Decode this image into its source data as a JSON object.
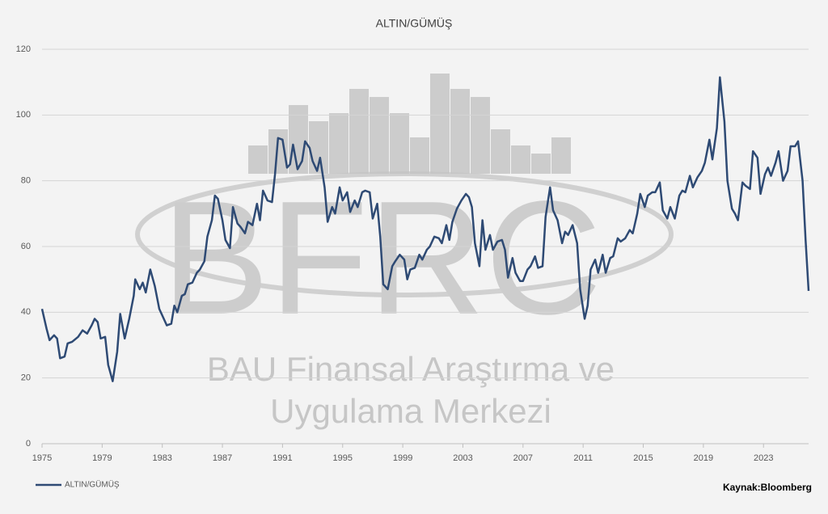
{
  "chart_data": {
    "type": "line",
    "title": "ALTIN/GÜMÜŞ",
    "source": "Kaynak:Bloomberg",
    "watermark": {
      "logo": "BFRC",
      "line1": "BAU Finansal Araştırma ve",
      "line2": "Uygulama Merkezi"
    },
    "xlim": [
      1975,
      2026
    ],
    "xticks": [
      1975,
      1979,
      1983,
      1987,
      1991,
      1995,
      1999,
      2003,
      2007,
      2011,
      2015,
      2019,
      2023
    ],
    "ylim": [
      0,
      120
    ],
    "yticks": [
      0,
      20,
      40,
      60,
      80,
      100,
      120
    ],
    "grid": true,
    "legend": "bottom-left",
    "x": [
      1975.0,
      1975.3,
      1975.5,
      1975.8,
      1976.0,
      1976.2,
      1976.5,
      1976.7,
      1977.0,
      1977.4,
      1977.7,
      1978.0,
      1978.3,
      1978.5,
      1978.7,
      1978.9,
      1979.2,
      1979.4,
      1979.7,
      1980.0,
      1980.2,
      1980.5,
      1980.8,
      1981.1,
      1981.2,
      1981.5,
      1981.7,
      1981.9,
      1982.2,
      1982.5,
      1982.8,
      1983.0,
      1983.3,
      1983.6,
      1983.8,
      1984.0,
      1984.3,
      1984.5,
      1984.7,
      1985.0,
      1985.3,
      1985.5,
      1985.8,
      1986.0,
      1986.3,
      1986.5,
      1986.7,
      1987.0,
      1987.2,
      1987.5,
      1987.7,
      1988.0,
      1988.2,
      1988.5,
      1988.7,
      1989.0,
      1989.3,
      1989.5,
      1989.7,
      1990.0,
      1990.3,
      1990.5,
      1990.7,
      1991.0,
      1991.3,
      1991.5,
      1991.7,
      1992.0,
      1992.3,
      1992.5,
      1992.8,
      1993.0,
      1993.3,
      1993.5,
      1993.8,
      1994.0,
      1994.3,
      1994.5,
      1994.8,
      1995.0,
      1995.3,
      1995.5,
      1995.8,
      1996.0,
      1996.3,
      1996.5,
      1996.8,
      1997.0,
      1997.3,
      1997.5,
      1997.7,
      1998.0,
      1998.3,
      1998.5,
      1998.8,
      1999.1,
      1999.3,
      1999.5,
      1999.8,
      2000.1,
      2000.3,
      2000.6,
      2000.8,
      2001.1,
      2001.4,
      2001.6,
      2001.9,
      2002.1,
      2002.3,
      2002.6,
      2002.9,
      2003.2,
      2003.4,
      2003.6,
      2003.8,
      2004.1,
      2004.3,
      2004.5,
      2004.8,
      2005.0,
      2005.3,
      2005.6,
      2005.8,
      2006.0,
      2006.3,
      2006.5,
      2006.8,
      2007.0,
      2007.3,
      2007.5,
      2007.8,
      2008.0,
      2008.3,
      2008.5,
      2008.8,
      2009.0,
      2009.3,
      2009.6,
      2009.8,
      2010.0,
      2010.3,
      2010.6,
      2010.8,
      2011.1,
      2011.3,
      2011.5,
      2011.8,
      2012.0,
      2012.3,
      2012.5,
      2012.8,
      2013.0,
      2013.3,
      2013.5,
      2013.8,
      2014.1,
      2014.3,
      2014.6,
      2014.8,
      2015.1,
      2015.3,
      2015.6,
      2015.8,
      2016.1,
      2016.3,
      2016.6,
      2016.8,
      2017.1,
      2017.4,
      2017.6,
      2017.8,
      2018.1,
      2018.3,
      2018.6,
      2018.9,
      2019.1,
      2019.4,
      2019.6,
      2019.9,
      2020.1,
      2020.4,
      2020.6,
      2020.9,
      2021.1,
      2021.3,
      2021.6,
      2021.8,
      2022.1,
      2022.3,
      2022.6,
      2022.8,
      2023.1,
      2023.3,
      2023.5,
      2023.8,
      2024.0,
      2024.3,
      2024.6,
      2024.8,
      2025.1,
      2025.3,
      2025.6,
      2025.8,
      2026.0
    ],
    "series": [
      {
        "name": "ALTIN/GÜMÜŞ",
        "color": "#2e4a74",
        "values": [
          41,
          35,
          31.5,
          33,
          32,
          26,
          26.5,
          30.5,
          31,
          32.5,
          34.5,
          33.5,
          36,
          38,
          37,
          32,
          32.5,
          24,
          19,
          28,
          39.5,
          32,
          38,
          45,
          50,
          47,
          49,
          46,
          53,
          48,
          41,
          39,
          36,
          36.5,
          42,
          40,
          45,
          45.5,
          48.5,
          49,
          52,
          53,
          55.5,
          63,
          68,
          75.5,
          74.5,
          68,
          62,
          59.5,
          72,
          67,
          66,
          64,
          67.5,
          66.5,
          73,
          68,
          77,
          74,
          73.5,
          82,
          93,
          92.5,
          84,
          85,
          91,
          83.5,
          86,
          92,
          90,
          86,
          83,
          87,
          78,
          67.5,
          72,
          70,
          78,
          74,
          76.5,
          70.5,
          74,
          72,
          76.5,
          77,
          76.5,
          68.5,
          73,
          63,
          48.5,
          47,
          54,
          55.5,
          57.5,
          56,
          50,
          53,
          53.5,
          57.5,
          56,
          59,
          60,
          63,
          62.5,
          61,
          66.5,
          62,
          67.5,
          71.5,
          74,
          76,
          75,
          72,
          61,
          54,
          68,
          59,
          63.5,
          59,
          61.5,
          62,
          59,
          50.5,
          56.5,
          52,
          49.5,
          49.5,
          53,
          54,
          57,
          53.5,
          54,
          69,
          78,
          71,
          68,
          61,
          64.5,
          63.5,
          66.5,
          61,
          47,
          38,
          42,
          53,
          56,
          52,
          57.5,
          52,
          56.5,
          57,
          62.5,
          61.5,
          62.5,
          65,
          64,
          70,
          76,
          72,
          75.5,
          76.5,
          76.5,
          79.5,
          71,
          68.5,
          72,
          68.5,
          75.5,
          77,
          76.5,
          81.5,
          78,
          81,
          83,
          85.5,
          92.5,
          86.5,
          96,
          111.5,
          98,
          80,
          71.5,
          70,
          68,
          79.5,
          78.5,
          77.5,
          89,
          87,
          76,
          82,
          84,
          81.5,
          85.5,
          89,
          80,
          83,
          90.5,
          90.5,
          92,
          80,
          62,
          46.5
        ]
      }
    ]
  }
}
